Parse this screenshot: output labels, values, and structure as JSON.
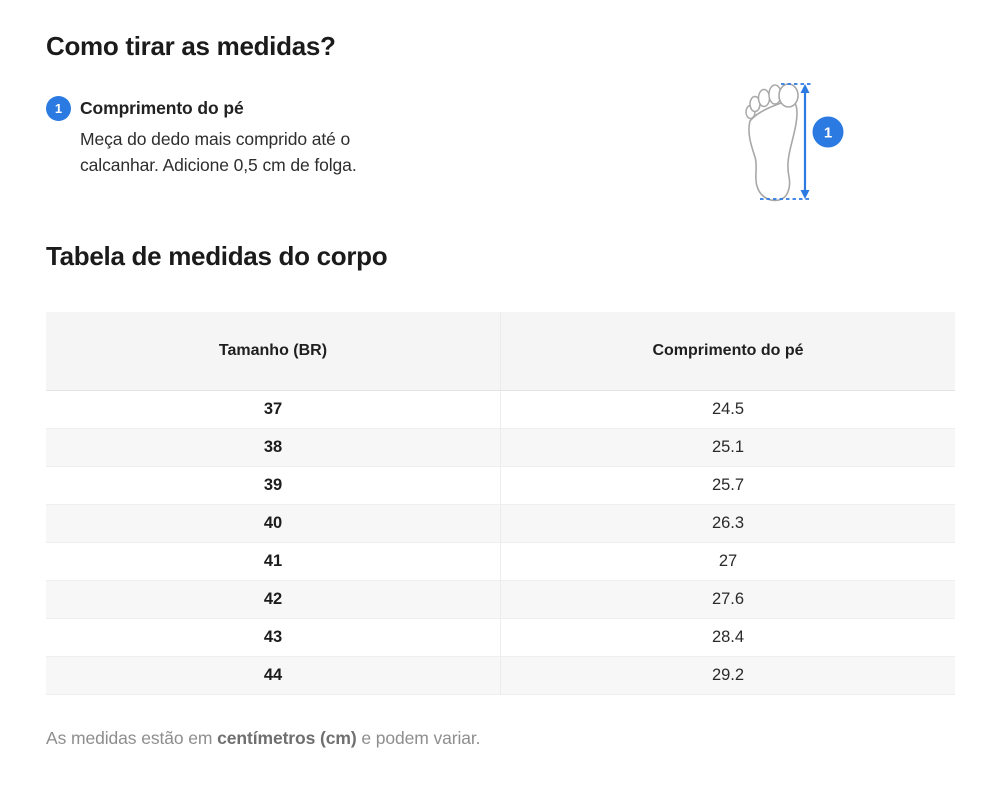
{
  "header": {
    "title": "Como tirar as medidas?"
  },
  "step": {
    "number": "1",
    "title": "Comprimento do pé",
    "description": "Meça do dedo mais comprido até o calcanhar. Adicione 0,5 cm de folga."
  },
  "illustration": {
    "icon": "foot-outline-with-measurement-arrow-icon",
    "badge_number": "1",
    "accent_color": "#2b7ae2",
    "outline_color": "#a8a8a8"
  },
  "measures_section": {
    "title": "Tabela de medidas do corpo"
  },
  "table": {
    "columns": [
      "Tamanho (BR)",
      "Comprimento do pé"
    ],
    "rows": [
      {
        "size": "37",
        "length": "24.5"
      },
      {
        "size": "38",
        "length": "25.1"
      },
      {
        "size": "39",
        "length": "25.7"
      },
      {
        "size": "40",
        "length": "26.3"
      },
      {
        "size": "41",
        "length": "27"
      },
      {
        "size": "42",
        "length": "27.6"
      },
      {
        "size": "43",
        "length": "28.4"
      },
      {
        "size": "44",
        "length": "29.2"
      }
    ]
  },
  "footnote": {
    "prefix": "As medidas estão em ",
    "bold": "centímetros (cm)",
    "suffix": " e podem variar."
  }
}
